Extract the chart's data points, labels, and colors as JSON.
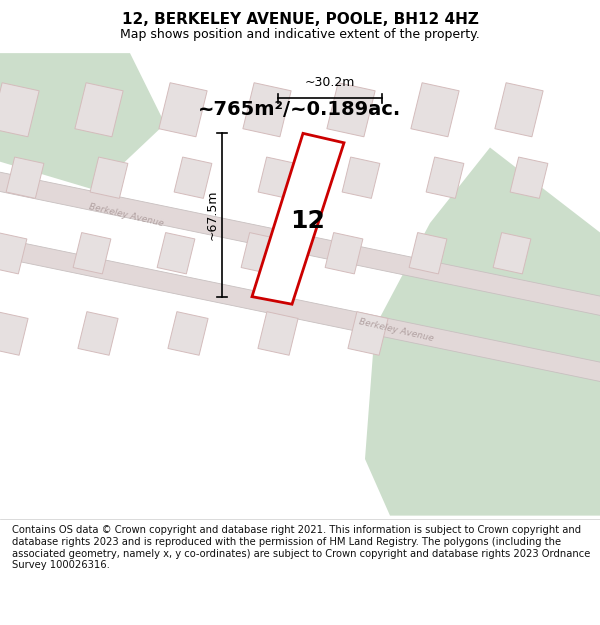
{
  "title": "12, BERKELEY AVENUE, POOLE, BH12 4HZ",
  "subtitle": "Map shows position and indicative extent of the property.",
  "footer": "Contains OS data © Crown copyright and database right 2021. This information is subject to Crown copyright and database rights 2023 and is reproduced with the permission of HM Land Registry. The polygons (including the associated geometry, namely x, y co-ordinates) are subject to Crown copyright and database rights 2023 Ordnance Survey 100026316.",
  "area_label": "~765m²/~0.189ac.",
  "width_label": "~30.2m",
  "height_label": "~67.5m",
  "plot_number": "12",
  "map_bg": "#f0ebe8",
  "green_color": "#ccdecb",
  "building_fill": "#e6e0e0",
  "building_stroke": "#d4bcbc",
  "plot_fill": "#ffffff",
  "plot_stroke": "#cc0000",
  "road_fill": "#e2d8d8",
  "road_stroke": "#c8c0c0",
  "road_label_color": "#b0a0a0",
  "title_fontsize": 11,
  "subtitle_fontsize": 9,
  "footer_fontsize": 7.2,
  "area_fontsize": 14,
  "plot_num_fontsize": 18,
  "dim_fontsize": 9
}
